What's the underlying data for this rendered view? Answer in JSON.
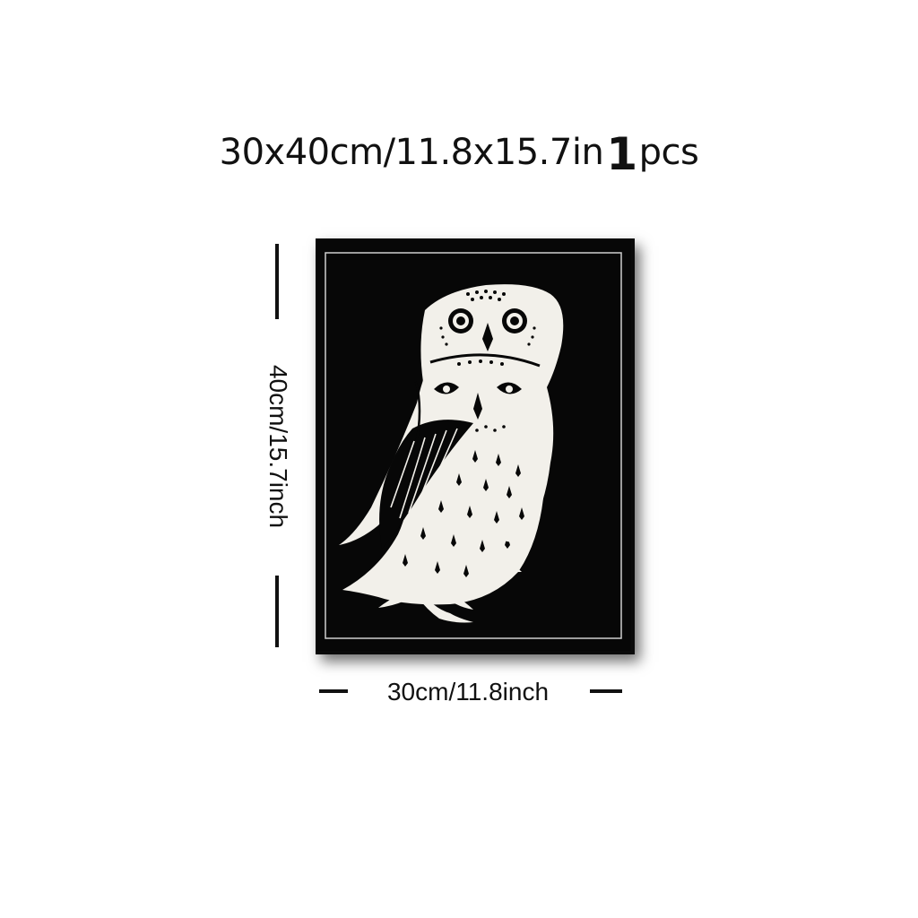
{
  "listing": {
    "size_text": "30x40cm/11.8x15.7in",
    "quantity_number": "1",
    "quantity_unit": "pcs"
  },
  "dimensions": {
    "height_label": "40cm/15.7inch",
    "width_label": "30cm/11.8inch"
  },
  "artwork": {
    "subject": "two stacked owls woodcut print",
    "background_color": "#070707",
    "foreground_color": "#f2f0ea"
  }
}
